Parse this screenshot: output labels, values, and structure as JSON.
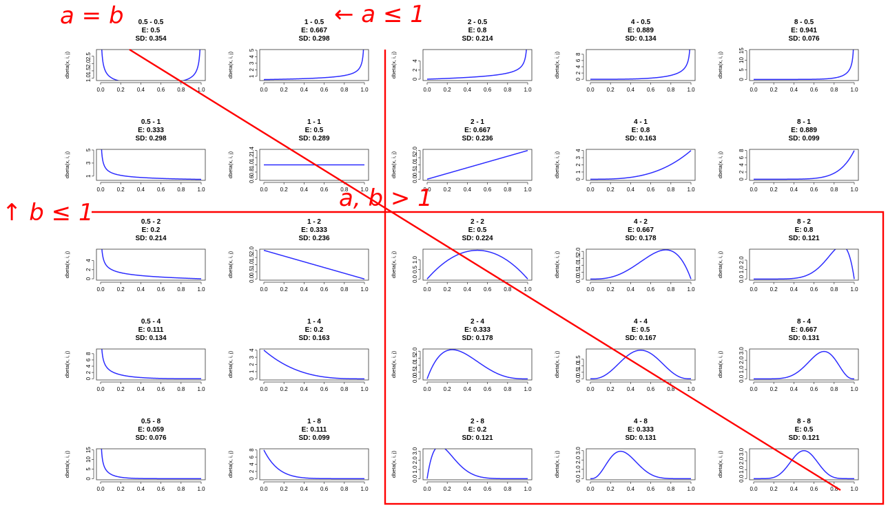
{
  "colors": {
    "curve": "#2b2bff",
    "annotation": "#ff0000",
    "frame": "#333333"
  },
  "annotations": {
    "diagonal": "a = b",
    "a_le_1": "← a ≤ 1",
    "b_le_1": "↑ b ≤ 1",
    "both_gt_1": "a, b > 1"
  },
  "chart_data": [
    {
      "type": "line",
      "title": "0.5 - 0.5",
      "stats": [
        "E: 0.5",
        "SD: 0.354"
      ],
      "ylabel": "dbeta(x, i, j)",
      "a": 0.5,
      "b": 0.5,
      "xticks": [
        "0.0",
        "0.2",
        "0.4",
        "0.6",
        "0.8",
        "1.0"
      ],
      "yticks": [
        {
          "v": 1.0,
          "l": "1.0"
        },
        {
          "v": 1.5,
          "l": "1.5"
        },
        {
          "v": 2.0,
          "l": "2.0"
        },
        {
          "v": 2.5,
          "l": "2.5"
        }
      ],
      "ylim": [
        0.84,
        2.95
      ],
      "grid": false
    },
    {
      "type": "line",
      "title": "1 - 0.5",
      "stats": [
        "E: 0.667",
        "SD: 0.298"
      ],
      "ylabel": "dbeta(x, i, j)",
      "a": 1,
      "b": 0.5,
      "xticks": [
        "0.0",
        "0.2",
        "0.4",
        "0.6",
        "0.8",
        "1.0"
      ],
      "yticks": [
        {
          "v": 1,
          "l": "1"
        },
        {
          "v": 2,
          "l": "2"
        },
        {
          "v": 3,
          "l": "3"
        },
        {
          "v": 4,
          "l": "4"
        },
        {
          "v": 5,
          "l": "5"
        }
      ],
      "ylim": [
        0.35,
        5.1
      ],
      "grid": false
    },
    {
      "type": "line",
      "title": "2 - 0.5",
      "stats": [
        "E: 0.8",
        "SD: 0.214"
      ],
      "ylabel": "dbeta(x, i, j)",
      "a": 2,
      "b": 0.5,
      "xticks": [
        "0.0",
        "0.2",
        "0.4",
        "0.6",
        "0.8",
        "1.0"
      ],
      "yticks": [
        {
          "v": 0,
          "l": "0"
        },
        {
          "v": 2,
          "l": "2"
        },
        {
          "v": 4,
          "l": "4"
        }
      ],
      "ylim": [
        -0.3,
        6.5
      ],
      "grid": false
    },
    {
      "type": "line",
      "title": "4 - 0.5",
      "stats": [
        "E: 0.889",
        "SD: 0.134"
      ],
      "ylabel": "dbeta(x, i, j)",
      "a": 4,
      "b": 0.5,
      "xticks": [
        "0.0",
        "0.2",
        "0.4",
        "0.6",
        "0.8",
        "1.0"
      ],
      "yticks": [
        {
          "v": 0,
          "l": "0"
        },
        {
          "v": 2,
          "l": "2"
        },
        {
          "v": 4,
          "l": "4"
        },
        {
          "v": 6,
          "l": "6"
        },
        {
          "v": 8,
          "l": "8"
        }
      ],
      "ylim": [
        -0.4,
        9.5
      ],
      "grid": false
    },
    {
      "type": "line",
      "title": "8 - 0.5",
      "stats": [
        "E: 0.941",
        "SD: 0.076"
      ],
      "ylabel": "dbeta(x, i, j)",
      "a": 8,
      "b": 0.5,
      "xticks": [
        "0.0",
        "0.2",
        "0.4",
        "0.6",
        "0.8",
        "1.0"
      ],
      "yticks": [
        {
          "v": 0,
          "l": "0"
        },
        {
          "v": 5,
          "l": "5"
        },
        {
          "v": 10,
          "l": "10"
        },
        {
          "v": 15,
          "l": "15"
        }
      ],
      "ylim": [
        -0.6,
        15.6
      ],
      "grid": false
    },
    {
      "type": "line",
      "title": "0.5 - 1",
      "stats": [
        "E: 0.333",
        "SD: 0.298"
      ],
      "ylabel": "dbeta(x, i, j)",
      "a": 0.5,
      "b": 1,
      "xticks": [
        "0.0",
        "0.2",
        "0.4",
        "0.6",
        "0.8",
        "1.0"
      ],
      "yticks": [
        {
          "v": 1,
          "l": "1"
        },
        {
          "v": 3,
          "l": "3"
        },
        {
          "v": 5,
          "l": "5"
        }
      ],
      "ylim": [
        0.35,
        5.1
      ],
      "grid": false
    },
    {
      "type": "line",
      "title": "1 - 1",
      "stats": [
        "E: 0.5",
        "SD: 0.289"
      ],
      "ylabel": "dbeta(x, i, j)",
      "a": 1,
      "b": 1,
      "xticks": [
        "0.0",
        "0.2",
        "0.4",
        "0.6",
        "0.8",
        "1.0"
      ],
      "yticks": [
        {
          "v": 0.6,
          "l": "0.6"
        },
        {
          "v": 0.8,
          "l": "0.8"
        },
        {
          "v": 1.0,
          "l": "1.0"
        },
        {
          "v": 1.2,
          "l": "1.2"
        },
        {
          "v": 1.4,
          "l": "1.4"
        }
      ],
      "ylim": [
        0.57,
        1.43
      ],
      "grid": false
    },
    {
      "type": "line",
      "title": "2 - 1",
      "stats": [
        "E: 0.667",
        "SD: 0.236"
      ],
      "ylabel": "dbeta(x, i, j)",
      "a": 2,
      "b": 1,
      "xticks": [
        "0.0",
        "0.2",
        "0.4",
        "0.6",
        "0.8",
        "1.0"
      ],
      "yticks": [
        {
          "v": 0,
          "l": "0.0"
        },
        {
          "v": 0.5,
          "l": "0.5"
        },
        {
          "v": 1.0,
          "l": "1.0"
        },
        {
          "v": 1.5,
          "l": "1.5"
        },
        {
          "v": 2.0,
          "l": "2.0"
        }
      ],
      "ylim": [
        -0.08,
        2.08
      ],
      "grid": false
    },
    {
      "type": "line",
      "title": "4 - 1",
      "stats": [
        "E: 0.8",
        "SD: 0.163"
      ],
      "ylabel": "dbeta(x, i, j)",
      "a": 4,
      "b": 1,
      "xticks": [
        "0.0",
        "0.2",
        "0.4",
        "0.6",
        "0.8",
        "1.0"
      ],
      "yticks": [
        {
          "v": 0,
          "l": "0"
        },
        {
          "v": 1,
          "l": "1"
        },
        {
          "v": 2,
          "l": "2"
        },
        {
          "v": 3,
          "l": "3"
        },
        {
          "v": 4,
          "l": "4"
        }
      ],
      "ylim": [
        -0.16,
        4.16
      ],
      "grid": false
    },
    {
      "type": "line",
      "title": "8 - 1",
      "stats": [
        "E: 0.889",
        "SD: 0.099"
      ],
      "ylabel": "dbeta(x, i, j)",
      "a": 8,
      "b": 1,
      "xticks": [
        "0.0",
        "0.2",
        "0.4",
        "0.6",
        "0.8",
        "1.0"
      ],
      "yticks": [
        {
          "v": 0,
          "l": "0"
        },
        {
          "v": 2,
          "l": "2"
        },
        {
          "v": 4,
          "l": "4"
        },
        {
          "v": 6,
          "l": "6"
        },
        {
          "v": 8,
          "l": "8"
        }
      ],
      "ylim": [
        -0.32,
        8.32
      ],
      "grid": false
    },
    {
      "type": "line",
      "title": "0.5 - 2",
      "stats": [
        "E: 0.2",
        "SD: 0.214"
      ],
      "ylabel": "dbeta(x, i, j)",
      "a": 0.5,
      "b": 2,
      "xticks": [
        "0.0",
        "0.2",
        "0.4",
        "0.6",
        "0.8",
        "1.0"
      ],
      "yticks": [
        {
          "v": 0,
          "l": "0"
        },
        {
          "v": 2,
          "l": "2"
        },
        {
          "v": 4,
          "l": "4"
        }
      ],
      "ylim": [
        -0.3,
        6.5
      ],
      "grid": false
    },
    {
      "type": "line",
      "title": "1 - 2",
      "stats": [
        "E: 0.333",
        "SD: 0.236"
      ],
      "ylabel": "dbeta(x, i, j)",
      "a": 1,
      "b": 2,
      "xticks": [
        "0.0",
        "0.2",
        "0.4",
        "0.6",
        "0.8",
        "1.0"
      ],
      "yticks": [
        {
          "v": 0,
          "l": "0.0"
        },
        {
          "v": 0.5,
          "l": "0.5"
        },
        {
          "v": 1.0,
          "l": "1.0"
        },
        {
          "v": 1.5,
          "l": "1.5"
        },
        {
          "v": 2.0,
          "l": "2.0"
        }
      ],
      "ylim": [
        -0.08,
        2.08
      ],
      "grid": false
    },
    {
      "type": "line",
      "title": "2 - 2",
      "stats": [
        "E: 0.5",
        "SD: 0.224"
      ],
      "ylabel": "dbeta(x, i, j)",
      "a": 2,
      "b": 2,
      "xticks": [
        "0.0",
        "0.2",
        "0.4",
        "0.6",
        "0.8",
        "1.0"
      ],
      "yticks": [
        {
          "v": 0,
          "l": "0.0"
        },
        {
          "v": 0.5,
          "l": "0.5"
        },
        {
          "v": 1.0,
          "l": "1.0"
        }
      ],
      "ylim": [
        -0.06,
        1.56
      ],
      "grid": false
    },
    {
      "type": "line",
      "title": "4 - 2",
      "stats": [
        "E: 0.667",
        "SD: 0.178"
      ],
      "ylabel": "dbeta(x, i, j)",
      "a": 4,
      "b": 2,
      "xticks": [
        "0.0",
        "0.2",
        "0.4",
        "0.6",
        "0.8",
        "1.0"
      ],
      "yticks": [
        {
          "v": 0,
          "l": "0.0"
        },
        {
          "v": 0.5,
          "l": "0.5"
        },
        {
          "v": 1.0,
          "l": "1.0"
        },
        {
          "v": 1.5,
          "l": "1.5"
        },
        {
          "v": 2.0,
          "l": "2.0"
        }
      ],
      "ylim": [
        -0.08,
        2.16
      ],
      "grid": false
    },
    {
      "type": "line",
      "title": "8 - 2",
      "stats": [
        "E: 0.8",
        "SD: 0.121"
      ],
      "ylabel": "dbeta(x, i, j)",
      "a": 8,
      "b": 2,
      "xticks": [
        "0.0",
        "0.2",
        "0.4",
        "0.6",
        "0.8",
        "1.0"
      ],
      "yticks": [
        {
          "v": 0,
          "l": "0.0"
        },
        {
          "v": 1.0,
          "l": "1.0"
        },
        {
          "v": 2.0,
          "l": "2.0"
        }
      ],
      "ylim": [
        -0.12,
        3.16
      ],
      "grid": false
    },
    {
      "type": "line",
      "title": "0.5 - 4",
      "stats": [
        "E: 0.111",
        "SD: 0.134"
      ],
      "ylabel": "dbeta(x, i, j)",
      "a": 0.5,
      "b": 4,
      "xticks": [
        "0.0",
        "0.2",
        "0.4",
        "0.6",
        "0.8",
        "1.0"
      ],
      "yticks": [
        {
          "v": 0,
          "l": "0"
        },
        {
          "v": 2,
          "l": "2"
        },
        {
          "v": 4,
          "l": "4"
        },
        {
          "v": 6,
          "l": "6"
        },
        {
          "v": 8,
          "l": "8"
        }
      ],
      "ylim": [
        -0.4,
        9.5
      ],
      "grid": false
    },
    {
      "type": "line",
      "title": "1 - 4",
      "stats": [
        "E: 0.2",
        "SD: 0.163"
      ],
      "ylabel": "dbeta(x, i, j)",
      "a": 1,
      "b": 4,
      "xticks": [
        "0.0",
        "0.2",
        "0.4",
        "0.6",
        "0.8",
        "1.0"
      ],
      "yticks": [
        {
          "v": 0,
          "l": "0"
        },
        {
          "v": 1,
          "l": "1"
        },
        {
          "v": 2,
          "l": "2"
        },
        {
          "v": 3,
          "l": "3"
        },
        {
          "v": 4,
          "l": "4"
        }
      ],
      "ylim": [
        -0.16,
        4.16
      ],
      "grid": false
    },
    {
      "type": "line",
      "title": "2 - 4",
      "stats": [
        "E: 0.333",
        "SD: 0.178"
      ],
      "ylabel": "dbeta(x, i, j)",
      "a": 2,
      "b": 4,
      "xticks": [
        "0.0",
        "0.2",
        "0.4",
        "0.6",
        "0.8",
        "1.0"
      ],
      "yticks": [
        {
          "v": 0,
          "l": "0.0"
        },
        {
          "v": 0.5,
          "l": "0.5"
        },
        {
          "v": 1.0,
          "l": "1.0"
        },
        {
          "v": 1.5,
          "l": "1.5"
        },
        {
          "v": 2.0,
          "l": "2.0"
        }
      ],
      "ylim": [
        -0.08,
        2.16
      ],
      "grid": false
    },
    {
      "type": "line",
      "title": "4 - 4",
      "stats": [
        "E: 0.5",
        "SD: 0.167"
      ],
      "ylabel": "dbeta(x, i, j)",
      "a": 4,
      "b": 4,
      "xticks": [
        "0.0",
        "0.2",
        "0.4",
        "0.6",
        "0.8",
        "1.0"
      ],
      "yticks": [
        {
          "v": 0,
          "l": "0.0"
        },
        {
          "v": 0.5,
          "l": "0.5"
        },
        {
          "v": 1.0,
          "l": "1.0"
        },
        {
          "v": 1.5,
          "l": "1.5"
        }
      ],
      "ylim": [
        -0.09,
        2.28
      ],
      "grid": false
    },
    {
      "type": "line",
      "title": "8 - 4",
      "stats": [
        "E: 0.667",
        "SD: 0.131"
      ],
      "ylabel": "dbeta(x, i, j)",
      "a": 8,
      "b": 4,
      "xticks": [
        "0.0",
        "0.2",
        "0.4",
        "0.6",
        "0.8",
        "1.0"
      ],
      "yticks": [
        {
          "v": 0,
          "l": "0.0"
        },
        {
          "v": 1.0,
          "l": "1.0"
        },
        {
          "v": 2.0,
          "l": "2.0"
        },
        {
          "v": 3.0,
          "l": "3.0"
        }
      ],
      "ylim": [
        -0.12,
        3.2
      ],
      "grid": false
    },
    {
      "type": "line",
      "title": "0.5 - 8",
      "stats": [
        "E: 0.059",
        "SD: 0.076"
      ],
      "ylabel": "dbeta(x, i, j)",
      "a": 0.5,
      "b": 8,
      "xticks": [
        "0.0",
        "0.2",
        "0.4",
        "0.6",
        "0.8",
        "1.0"
      ],
      "yticks": [
        {
          "v": 0,
          "l": "0"
        },
        {
          "v": 5,
          "l": "5"
        },
        {
          "v": 10,
          "l": "10"
        },
        {
          "v": 15,
          "l": "15"
        }
      ],
      "ylim": [
        -0.6,
        15.6
      ],
      "grid": false
    },
    {
      "type": "line",
      "title": "1 - 8",
      "stats": [
        "E: 0.111",
        "SD: 0.099"
      ],
      "ylabel": "dbeta(x, i, j)",
      "a": 1,
      "b": 8,
      "xticks": [
        "0.0",
        "0.2",
        "0.4",
        "0.6",
        "0.8",
        "1.0"
      ],
      "yticks": [
        {
          "v": 0,
          "l": "0"
        },
        {
          "v": 2,
          "l": "2"
        },
        {
          "v": 4,
          "l": "4"
        },
        {
          "v": 6,
          "l": "6"
        },
        {
          "v": 8,
          "l": "8"
        }
      ],
      "ylim": [
        -0.32,
        8.32
      ],
      "grid": false
    },
    {
      "type": "line",
      "title": "2 - 8",
      "stats": [
        "E: 0.2",
        "SD: 0.121"
      ],
      "ylabel": "dbeta(x, i, j)",
      "a": 2,
      "b": 8,
      "xticks": [
        "0.0",
        "0.2",
        "0.4",
        "0.6",
        "0.8",
        "1.0"
      ],
      "yticks": [
        {
          "v": 0,
          "l": "0.0"
        },
        {
          "v": 1.0,
          "l": "1.0"
        },
        {
          "v": 2.0,
          "l": "2.0"
        },
        {
          "v": 3.0,
          "l": "3.0"
        }
      ],
      "ylim": [
        -0.12,
        3.25
      ],
      "grid": false
    },
    {
      "type": "line",
      "title": "4 - 8",
      "stats": [
        "E: 0.333",
        "SD: 0.131"
      ],
      "ylabel": "dbeta(x, i, j)",
      "a": 4,
      "b": 8,
      "xticks": [
        "0.0",
        "0.2",
        "0.4",
        "0.6",
        "0.8",
        "1.0"
      ],
      "yticks": [
        {
          "v": 0,
          "l": "0.0"
        },
        {
          "v": 1.0,
          "l": "1.0"
        },
        {
          "v": 2.0,
          "l": "2.0"
        },
        {
          "v": 3.0,
          "l": "3.0"
        }
      ],
      "ylim": [
        -0.12,
        3.2
      ],
      "grid": false
    },
    {
      "type": "line",
      "title": "8 - 8",
      "stats": [
        "E: 0.5",
        "SD: 0.121"
      ],
      "ylabel": "dbeta(x, i, j)",
      "a": 8,
      "b": 8,
      "xticks": [
        "0.0",
        "0.2",
        "0.4",
        "0.6",
        "0.8",
        "1.0"
      ],
      "yticks": [
        {
          "v": 0,
          "l": "0.0"
        },
        {
          "v": 1.0,
          "l": "1.0"
        },
        {
          "v": 2.0,
          "l": "2.0"
        },
        {
          "v": 3.0,
          "l": "3.0"
        }
      ],
      "ylim": [
        -0.13,
        3.35
      ],
      "grid": false
    }
  ]
}
